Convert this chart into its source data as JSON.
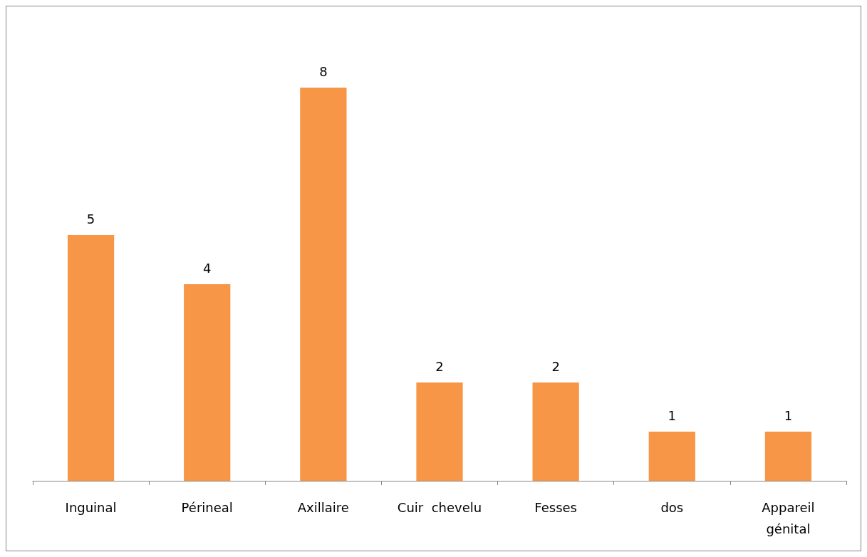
{
  "chart_data": {
    "type": "bar",
    "categories": [
      "Inguinal",
      "Périneal",
      "Axillaire",
      "Cuir  chevelu",
      "Fesses",
      "dos",
      "Appareil\ngénital"
    ],
    "values": [
      5,
      4,
      8,
      2,
      2,
      1,
      1
    ],
    "color": "#f79646",
    "data_labels": true
  }
}
